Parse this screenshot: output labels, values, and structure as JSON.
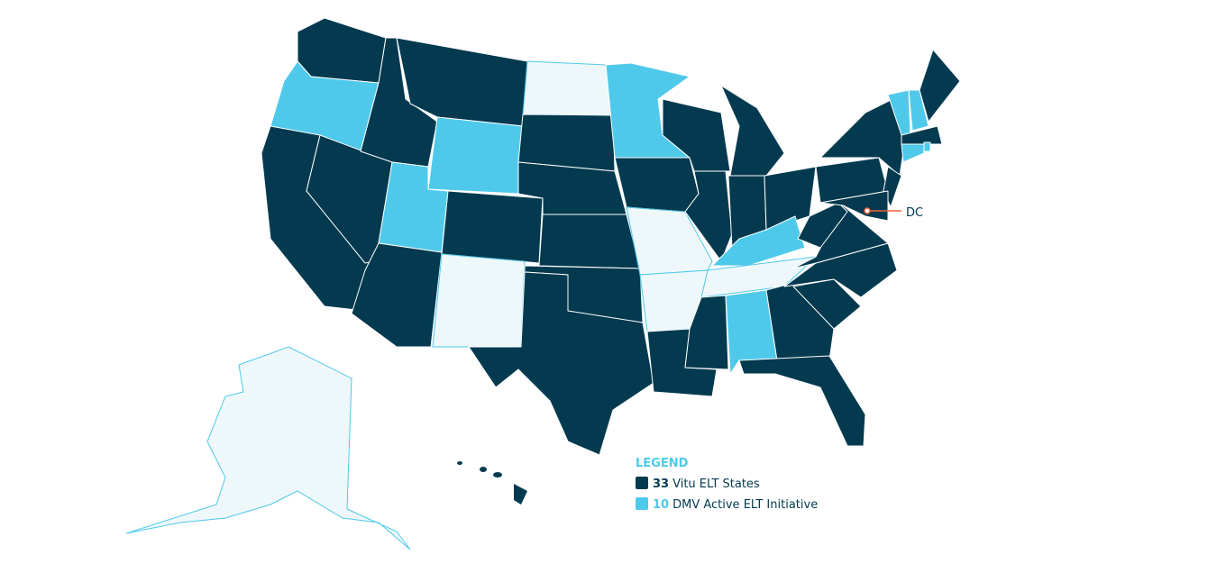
{
  "legend": {
    "title": "LEGEND",
    "items": [
      {
        "count": 33,
        "label": "Vitu ELT States",
        "color": "#033a4f"
      },
      {
        "count": 10,
        "label": "DMV Active ELT Initiative",
        "color": "#4fc9ea"
      }
    ]
  },
  "annotation": {
    "label": "DC",
    "color": "#e8643a"
  }
}
